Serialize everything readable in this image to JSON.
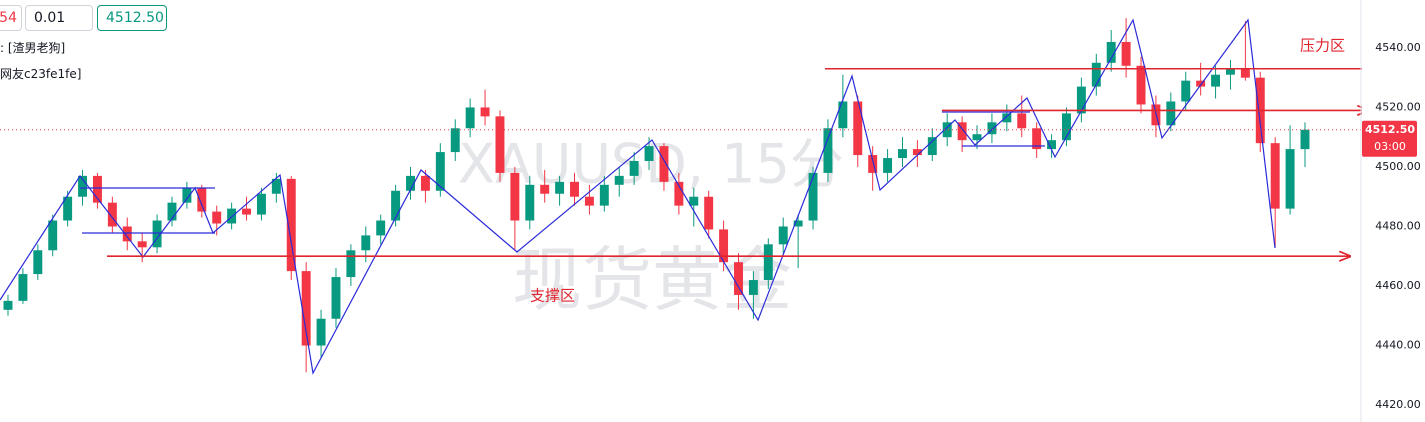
{
  "toolbar": {
    "sell_price": "54",
    "quantity": "0.01",
    "buy_price": "4512.50"
  },
  "legend_lines": [
    ": [渣男老狗]",
    "网友c23fe1fe]"
  ],
  "watermark": {
    "symbol": "XAUUSD, 15分",
    "name": "现货黄金"
  },
  "chart_data": {
    "type": "candlestick",
    "ylim": [
      4414.3,
      4556.1
    ],
    "yticks": [
      {
        "value": 4420,
        "label": "4420.00"
      },
      {
        "value": 4440,
        "label": "4440.00"
      },
      {
        "value": 4460,
        "label": "4460.00"
      },
      {
        "value": 4480,
        "label": "4480.00"
      },
      {
        "value": 4500,
        "label": "4500.00"
      },
      {
        "value": 4520,
        "label": "4520.00"
      },
      {
        "value": 4540,
        "label": "4540.00"
      }
    ],
    "up_color": "#089981",
    "down_color": "#f23645",
    "last_price": {
      "value": 4512.5,
      "label": "4512.50"
    },
    "countdown": "03:00",
    "resistance": {
      "text": "压力区",
      "levels": [
        4533,
        4519
      ]
    },
    "support": {
      "text": "支撑区",
      "levels": [
        4470
      ]
    },
    "candles": [
      [
        4452,
        4457,
        4450,
        4455
      ],
      [
        4455,
        4466,
        4454,
        4464
      ],
      [
        4464,
        4474,
        4462,
        4472
      ],
      [
        4472,
        4484,
        4470,
        4482
      ],
      [
        4482,
        4492,
        4480,
        4490
      ],
      [
        4490,
        4499,
        4487,
        4497
      ],
      [
        4497,
        4498,
        4486,
        4488
      ],
      [
        4488,
        4490,
        4478,
        4480
      ],
      [
        4480,
        4483,
        4472,
        4475
      ],
      [
        4475,
        4478,
        4468,
        4473
      ],
      [
        4473,
        4484,
        4471,
        4482
      ],
      [
        4482,
        4490,
        4480,
        4488
      ],
      [
        4488,
        4495,
        4486,
        4493
      ],
      [
        4493,
        4494,
        4483,
        4485
      ],
      [
        4485,
        4487,
        4477,
        4481
      ],
      [
        4481,
        4488,
        4479,
        4486
      ],
      [
        4486,
        4490,
        4482,
        4484
      ],
      [
        4484,
        4493,
        4482,
        4491
      ],
      [
        4491,
        4498,
        4488,
        4496
      ],
      [
        4496,
        4497,
        4462,
        4465
      ],
      [
        4465,
        4468,
        4431,
        4440
      ],
      [
        4440,
        4452,
        4436,
        4449
      ],
      [
        4449,
        4466,
        4446,
        4463
      ],
      [
        4463,
        4474,
        4460,
        4472
      ],
      [
        4472,
        4480,
        4468,
        4477
      ],
      [
        4477,
        4484,
        4474,
        4482
      ],
      [
        4482,
        4494,
        4480,
        4492
      ],
      [
        4492,
        4500,
        4489,
        4497
      ],
      [
        4497,
        4499,
        4488,
        4492
      ],
      [
        4492,
        4508,
        4490,
        4505
      ],
      [
        4505,
        4516,
        4502,
        4513
      ],
      [
        4513,
        4523,
        4510,
        4520
      ],
      [
        4520,
        4526,
        4514,
        4517
      ],
      [
        4517,
        4519,
        4495,
        4498
      ],
      [
        4498,
        4500,
        4472,
        4482
      ],
      [
        4482,
        4497,
        4479,
        4494
      ],
      [
        4494,
        4499,
        4488,
        4491
      ],
      [
        4491,
        4497,
        4487,
        4495
      ],
      [
        4495,
        4498,
        4487,
        4490
      ],
      [
        4490,
        4494,
        4484,
        4487
      ],
      [
        4487,
        4497,
        4485,
        4494
      ],
      [
        4494,
        4500,
        4490,
        4497
      ],
      [
        4497,
        4505,
        4494,
        4502
      ],
      [
        4502,
        4510,
        4499,
        4507
      ],
      [
        4507,
        4508,
        4492,
        4495
      ],
      [
        4495,
        4498,
        4484,
        4487
      ],
      [
        4487,
        4493,
        4480,
        4490
      ],
      [
        4490,
        4492,
        4476,
        4479
      ],
      [
        4479,
        4482,
        4465,
        4468
      ],
      [
        4468,
        4471,
        4452,
        4457
      ],
      [
        4457,
        4465,
        4449,
        4462
      ],
      [
        4462,
        4476,
        4459,
        4474
      ],
      [
        4474,
        4483,
        4471,
        4480
      ],
      [
        4480,
        4484,
        4466,
        4482
      ],
      [
        4482,
        4500,
        4479,
        4498
      ],
      [
        4498,
        4516,
        4495,
        4513
      ],
      [
        4513,
        4531,
        4510,
        4522
      ],
      [
        4522,
        4524,
        4500,
        4504
      ],
      [
        4504,
        4507,
        4492,
        4498
      ],
      [
        4498,
        4506,
        4495,
        4503
      ],
      [
        4503,
        4510,
        4500,
        4506
      ],
      [
        4506,
        4509,
        4500,
        4504
      ],
      [
        4504,
        4513,
        4502,
        4510
      ],
      [
        4510,
        4518,
        4507,
        4515
      ],
      [
        4515,
        4517,
        4505,
        4509
      ],
      [
        4509,
        4514,
        4506,
        4511
      ],
      [
        4511,
        4518,
        4508,
        4515
      ],
      [
        4515,
        4521,
        4512,
        4518
      ],
      [
        4518,
        4524,
        4510,
        4513
      ],
      [
        4513,
        4515,
        4503,
        4506
      ],
      [
        4506,
        4511,
        4503,
        4509
      ],
      [
        4509,
        4520,
        4507,
        4518
      ],
      [
        4518,
        4530,
        4515,
        4527
      ],
      [
        4527,
        4538,
        4524,
        4535
      ],
      [
        4535,
        4546,
        4532,
        4542
      ],
      [
        4542,
        4550,
        4530,
        4534
      ],
      [
        4534,
        4537,
        4518,
        4521
      ],
      [
        4521,
        4524,
        4510,
        4514
      ],
      [
        4514,
        4525,
        4512,
        4522
      ],
      [
        4522,
        4532,
        4519,
        4529
      ],
      [
        4529,
        4535,
        4524,
        4527
      ],
      [
        4527,
        4534,
        4523,
        4531
      ],
      [
        4531,
        4536,
        4526,
        4533
      ],
      [
        4533,
        4549,
        4529,
        4530
      ],
      [
        4530,
        4532,
        4505,
        4508
      ],
      [
        4508,
        4510,
        4473,
        4486
      ],
      [
        4486,
        4514,
        4484,
        4506
      ],
      [
        4506,
        4515,
        4500,
        4512.5
      ]
    ]
  }
}
